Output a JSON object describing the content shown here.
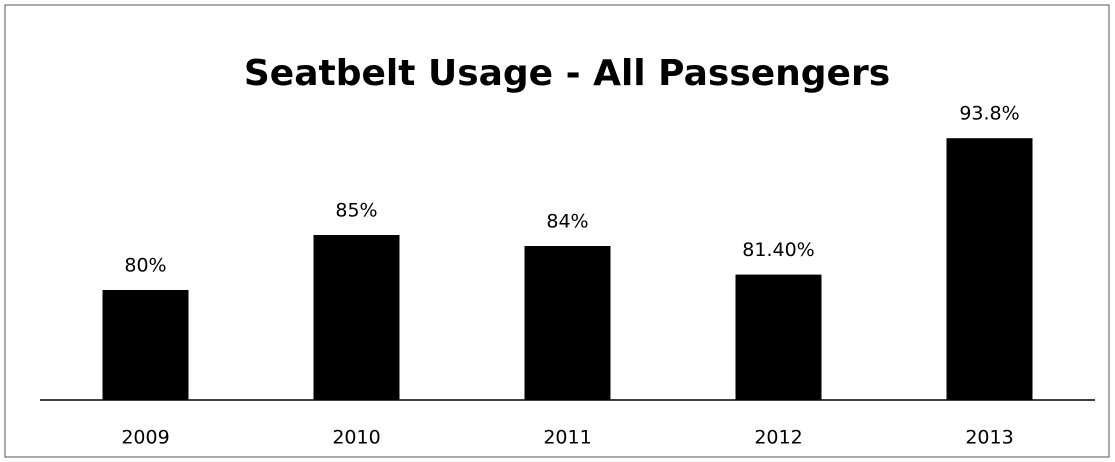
{
  "chart_data": {
    "type": "bar",
    "title": "Seatbelt Usage - All Passengers",
    "categories": [
      "2009",
      "2010",
      "2011",
      "2012",
      "2013"
    ],
    "values": [
      80,
      85,
      84,
      81.4,
      93.8
    ],
    "value_labels": [
      "80%",
      "85%",
      "84%",
      "81.40%",
      "93.8%"
    ],
    "color": "#000000",
    "ylim": [
      70,
      100
    ]
  }
}
